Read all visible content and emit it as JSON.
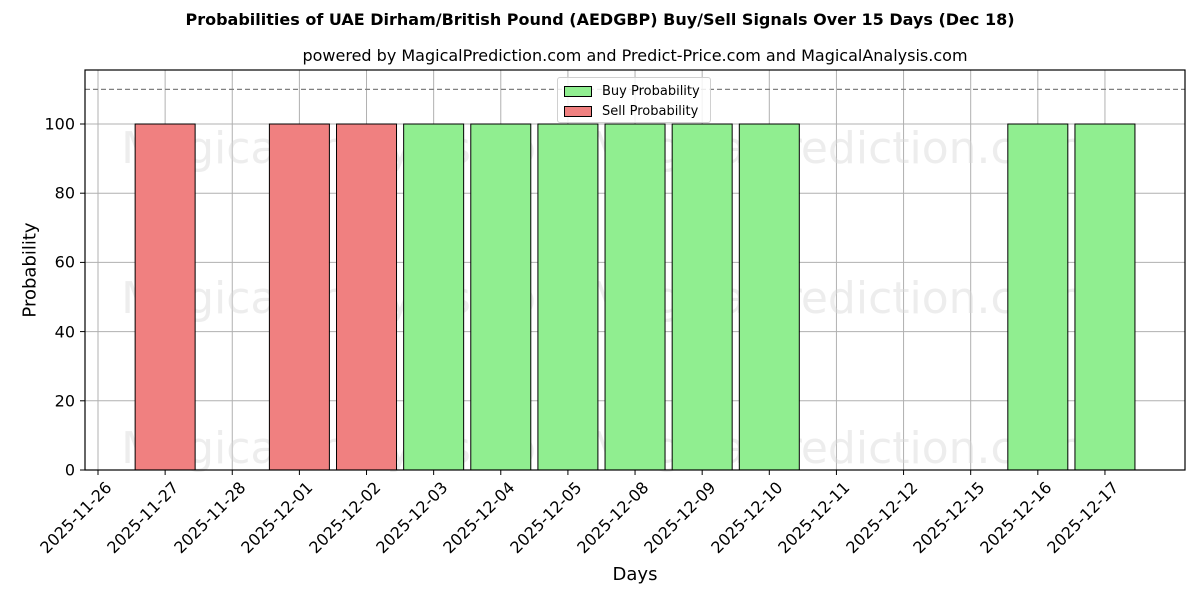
{
  "title": "Probabilities of UAE Dirham/British Pound (AEDGBP) Buy/Sell Signals Over 15 Days (Dec 18)",
  "subtitle": "powered by MagicalPrediction.com and Predict-Price.com and MagicalAnalysis.com",
  "legend": {
    "buy_label": "Buy Probability",
    "sell_label": "Sell Probability"
  },
  "colors": {
    "buy": "#90ee90",
    "sell": "#f08080",
    "grid": "#b0b0b0",
    "reference_line": "#808080"
  },
  "watermarks": [
    "MagicalAnalysis.com",
    "MagicalPrediction.com"
  ],
  "chart_data": {
    "type": "bar",
    "title": "Probabilities of UAE Dirham/British Pound (AEDGBP) Buy/Sell Signals Over 15 Days (Dec 18)",
    "subtitle": "powered by MagicalPrediction.com and Predict-Price.com and MagicalAnalysis.com",
    "xlabel": "Days",
    "ylabel": "Probability",
    "ylim": [
      0,
      116
    ],
    "yticks": [
      0,
      20,
      40,
      60,
      80,
      100
    ],
    "reference_line": {
      "y": 110,
      "style": "dashed"
    },
    "grid": true,
    "legend_position": "upper center",
    "categories": [
      "2025-11-26",
      "2025-11-27",
      "2025-11-28",
      "2025-12-01",
      "2025-12-02",
      "2025-12-03",
      "2025-12-04",
      "2025-12-05",
      "2025-12-08",
      "2025-12-09",
      "2025-12-10",
      "2025-12-11",
      "2025-12-12",
      "2025-12-15",
      "2025-12-16",
      "2025-12-17"
    ],
    "series": [
      {
        "name": "Buy Probability",
        "values": [
          0,
          0,
          0,
          0,
          0,
          100,
          100,
          100,
          100,
          100,
          100,
          0,
          0,
          0,
          100,
          100
        ]
      },
      {
        "name": "Sell Probability",
        "values": [
          0,
          100,
          0,
          100,
          100,
          0,
          0,
          0,
          0,
          0,
          0,
          0,
          0,
          0,
          0,
          0
        ]
      }
    ]
  }
}
